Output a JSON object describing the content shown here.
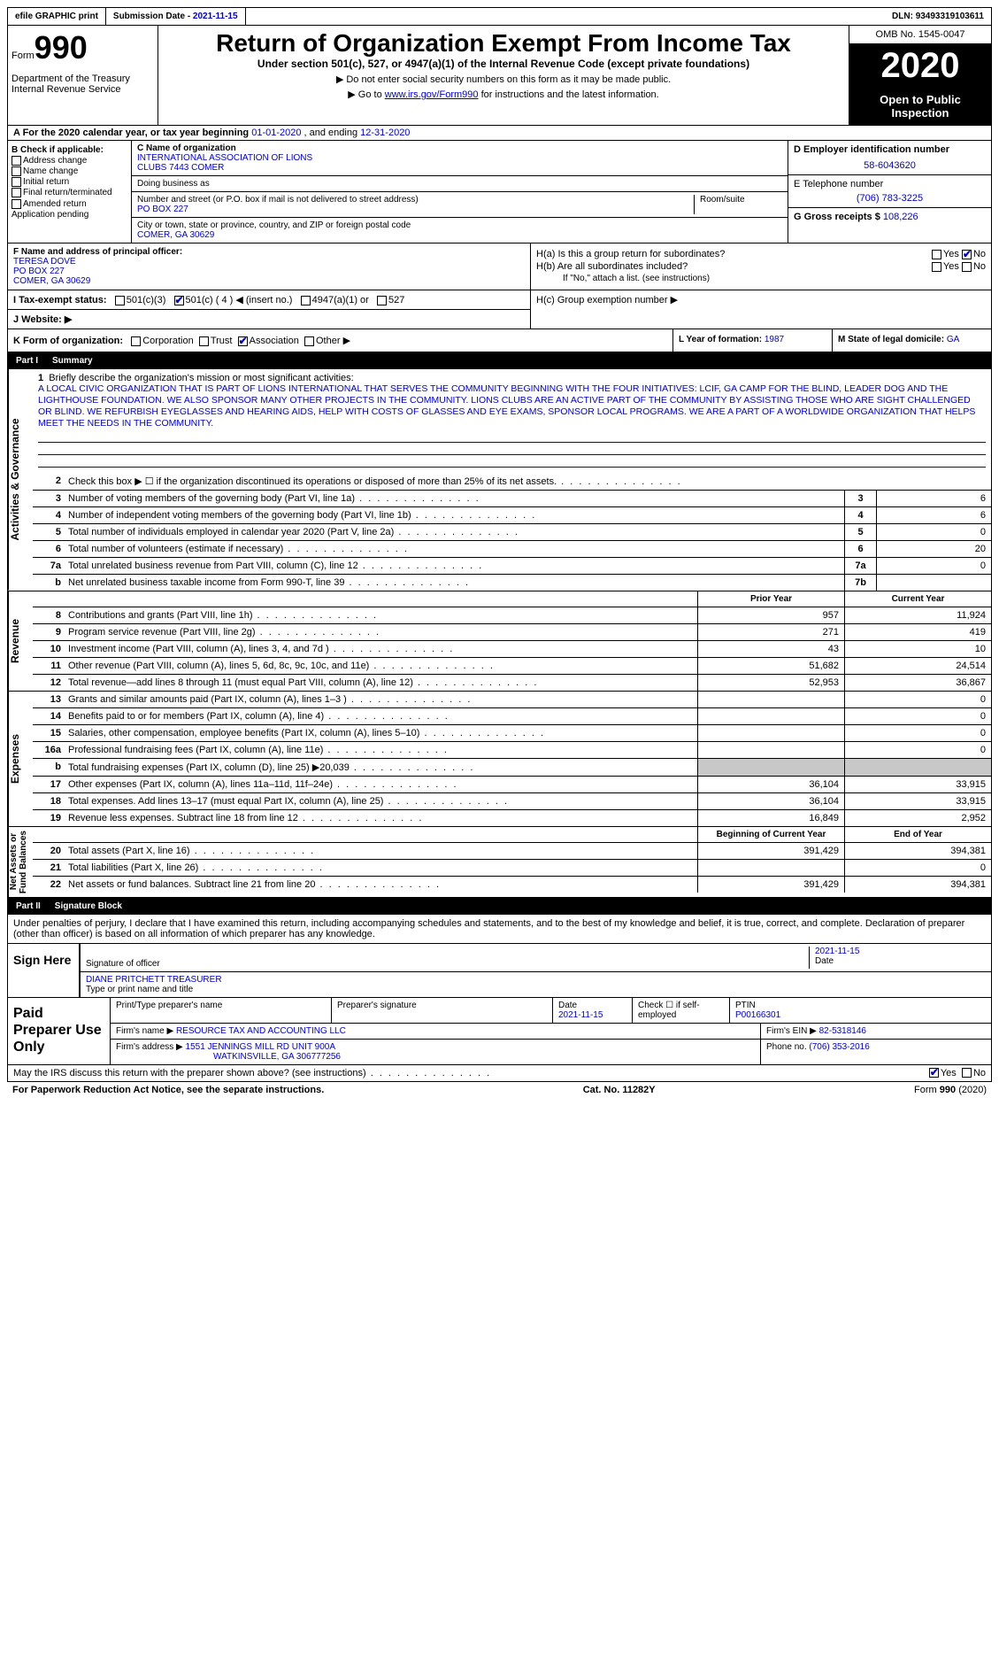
{
  "topbar": {
    "efile": "efile GRAPHIC print",
    "submission_label": "Submission Date - ",
    "submission_date": "2021-11-15",
    "dln_label": "DLN: ",
    "dln": "93493319103611"
  },
  "header": {
    "form_word": "Form",
    "form_num": "990",
    "dept": "Department of the Treasury\nInternal Revenue Service",
    "title": "Return of Organization Exempt From Income Tax",
    "subtitle": "Under section 501(c), 527, or 4947(a)(1) of the Internal Revenue Code (except private foundations)",
    "note1": "▶ Do not enter social security numbers on this form as it may be made public.",
    "note2_pre": "▶ Go to ",
    "note2_link": "www.irs.gov/Form990",
    "note2_post": " for instructions and the latest information.",
    "omb": "OMB No. 1545-0047",
    "year": "2020",
    "open": "Open to Public Inspection"
  },
  "row_a": {
    "label": "A For the 2020 calendar year, or tax year beginning ",
    "begin": "01-01-2020",
    "mid": " , and ending ",
    "end": "12-31-2020"
  },
  "box_b": {
    "label": "B Check if applicable:",
    "opts": [
      "Address change",
      "Name change",
      "Initial return",
      "Final return/terminated",
      "Amended return",
      "Application pending"
    ]
  },
  "box_c": {
    "name_label": "C Name of organization",
    "name1": "INTERNATIONAL ASSOCIATION OF LIONS",
    "name2": "CLUBS 7443 COMER",
    "dba_label": "Doing business as",
    "addr_label": "Number and street (or P.O. box if mail is not delivered to street address)",
    "room_label": "Room/suite",
    "addr": "PO BOX 227",
    "city_label": "City or town, state or province, country, and ZIP or foreign postal code",
    "city": "COMER, GA  30629"
  },
  "box_d": {
    "label": "D Employer identification number",
    "ein": "58-6043620"
  },
  "box_e": {
    "label": "E Telephone number",
    "phone": "(706) 783-3225"
  },
  "box_g": {
    "label": "G Gross receipts $ ",
    "amount": "108,226"
  },
  "box_f": {
    "label": "F Name and address of principal officer:",
    "name": "TERESA DOVE",
    "addr1": "PO BOX 227",
    "addr2": "COMER, GA  30629"
  },
  "box_h": {
    "ha_label": "H(a)  Is this a group return for subordinates?",
    "hb_label": "H(b)  Are all subordinates included?",
    "hb_note": "If \"No,\" attach a list. (see instructions)",
    "hc_label": "H(c)  Group exemption number ▶",
    "yes": "Yes",
    "no": "No"
  },
  "box_i": {
    "label": "I  Tax-exempt status:",
    "o1": "501(c)(3)",
    "o2": "501(c) ( 4 ) ◀ (insert no.)",
    "o3": "4947(a)(1) or",
    "o4": "527"
  },
  "box_j": {
    "label": "J  Website: ▶"
  },
  "box_k": {
    "label": "K Form of organization:",
    "opts": [
      "Corporation",
      "Trust",
      "Association",
      "Other ▶"
    ]
  },
  "box_l": {
    "label": "L Year of formation: ",
    "val": "1987"
  },
  "box_m": {
    "label": "M State of legal domicile: ",
    "val": "GA"
  },
  "part1": {
    "num": "Part I",
    "title": "Summary"
  },
  "vtabs": {
    "ag": "Activities & Governance",
    "rev": "Revenue",
    "exp": "Expenses",
    "na": "Net Assets or\nFund Balances"
  },
  "mission": {
    "num": "1",
    "label": "Briefly describe the organization's mission or most significant activities:",
    "text": "A LOCAL CIVIC ORGANIZATION THAT IS PART OF LIONS INTERNATIONAL THAT SERVES THE COMMUNITY BEGINNING WITH THE FOUR INITIATIVES: LCIF, GA CAMP FOR THE BLIND, LEADER DOG AND THE LIGHTHOUSE FOUNDATION. WE ALSO SPONSOR MANY OTHER PROJECTS IN THE COMMUNITY. LIONS CLUBS ARE AN ACTIVE PART OF THE COMMUNITY BY ASSISTING THOSE WHO ARE SIGHT CHALLENGED OR BLIND. WE REFURBISH EYEGLASSES AND HEARING AIDS, HELP WITH COSTS OF GLASSES AND EYE EXAMS, SPONSOR LOCAL PROGRAMS. WE ARE A PART OF A WORLDWIDE ORGANIZATION THAT HELPS MEET THE NEEDS IN THE COMMUNITY."
  },
  "lines_ag": [
    {
      "n": "2",
      "t": "Check this box ▶ ☐ if the organization discontinued its operations or disposed of more than 25% of its net assets.",
      "box": "",
      "v": ""
    },
    {
      "n": "3",
      "t": "Number of voting members of the governing body (Part VI, line 1a)",
      "box": "3",
      "v": "6"
    },
    {
      "n": "4",
      "t": "Number of independent voting members of the governing body (Part VI, line 1b)",
      "box": "4",
      "v": "6"
    },
    {
      "n": "5",
      "t": "Total number of individuals employed in calendar year 2020 (Part V, line 2a)",
      "box": "5",
      "v": "0"
    },
    {
      "n": "6",
      "t": "Total number of volunteers (estimate if necessary)",
      "box": "6",
      "v": "20"
    },
    {
      "n": "7a",
      "t": "Total unrelated business revenue from Part VIII, column (C), line 12",
      "box": "7a",
      "v": "0"
    },
    {
      "n": "b",
      "t": "Net unrelated business taxable income from Form 990-T, line 39",
      "box": "7b",
      "v": ""
    }
  ],
  "col_hdrs": {
    "prior": "Prior Year",
    "current": "Current Year",
    "boc": "Beginning of Current Year",
    "eoy": "End of Year"
  },
  "lines_rev": [
    {
      "n": "8",
      "t": "Contributions and grants (Part VIII, line 1h)",
      "p": "957",
      "c": "11,924"
    },
    {
      "n": "9",
      "t": "Program service revenue (Part VIII, line 2g)",
      "p": "271",
      "c": "419"
    },
    {
      "n": "10",
      "t": "Investment income (Part VIII, column (A), lines 3, 4, and 7d )",
      "p": "43",
      "c": "10"
    },
    {
      "n": "11",
      "t": "Other revenue (Part VIII, column (A), lines 5, 6d, 8c, 9c, 10c, and 11e)",
      "p": "51,682",
      "c": "24,514"
    },
    {
      "n": "12",
      "t": "Total revenue—add lines 8 through 11 (must equal Part VIII, column (A), line 12)",
      "p": "52,953",
      "c": "36,867"
    }
  ],
  "lines_exp": [
    {
      "n": "13",
      "t": "Grants and similar amounts paid (Part IX, column (A), lines 1–3 )",
      "p": "",
      "c": "0"
    },
    {
      "n": "14",
      "t": "Benefits paid to or for members (Part IX, column (A), line 4)",
      "p": "",
      "c": "0"
    },
    {
      "n": "15",
      "t": "Salaries, other compensation, employee benefits (Part IX, column (A), lines 5–10)",
      "p": "",
      "c": "0"
    },
    {
      "n": "16a",
      "t": "Professional fundraising fees (Part IX, column (A), line 11e)",
      "p": "",
      "c": "0"
    },
    {
      "n": "b",
      "t": "Total fundraising expenses (Part IX, column (D), line 25) ▶20,039",
      "p": "GRAY",
      "c": "GRAY"
    },
    {
      "n": "17",
      "t": "Other expenses (Part IX, column (A), lines 11a–11d, 11f–24e)",
      "p": "36,104",
      "c": "33,915"
    },
    {
      "n": "18",
      "t": "Total expenses. Add lines 13–17 (must equal Part IX, column (A), line 25)",
      "p": "36,104",
      "c": "33,915"
    },
    {
      "n": "19",
      "t": "Revenue less expenses. Subtract line 18 from line 12",
      "p": "16,849",
      "c": "2,952"
    }
  ],
  "lines_na": [
    {
      "n": "20",
      "t": "Total assets (Part X, line 16)",
      "p": "391,429",
      "c": "394,381"
    },
    {
      "n": "21",
      "t": "Total liabilities (Part X, line 26)",
      "p": "",
      "c": "0"
    },
    {
      "n": "22",
      "t": "Net assets or fund balances. Subtract line 21 from line 20",
      "p": "391,429",
      "c": "394,381"
    }
  ],
  "part2": {
    "num": "Part II",
    "title": "Signature Block"
  },
  "sig": {
    "decl": "Under penalties of perjury, I declare that I have examined this return, including accompanying schedules and statements, and to the best of my knowledge and belief, it is true, correct, and complete. Declaration of preparer (other than officer) is based on all information of which preparer has any knowledge.",
    "sign_here": "Sign Here",
    "sig_label": "Signature of officer",
    "date_label": "Date",
    "date": "2021-11-15",
    "name": "DIANE PRITCHETT  TREASURER",
    "name_label": "Type or print name and title"
  },
  "prep": {
    "title": "Paid Preparer Use Only",
    "h_name": "Print/Type preparer's name",
    "h_sig": "Preparer's signature",
    "h_date": "Date",
    "date": "2021-11-15",
    "check_label": "Check ☐ if self-employed",
    "ptin_label": "PTIN",
    "ptin": "P00166301",
    "firm_name_label": "Firm's name    ▶",
    "firm_name": "RESOURCE TAX AND ACCOUNTING LLC",
    "firm_ein_label": "Firm's EIN ▶",
    "firm_ein": "82-5318146",
    "firm_addr_label": "Firm's address ▶",
    "firm_addr1": "1551 JENNINGS MILL RD UNIT 900A",
    "firm_addr2": "WATKINSVILLE, GA  306777256",
    "phone_label": "Phone no. ",
    "phone": "(706) 353-2016"
  },
  "footer": {
    "discuss": "May the IRS discuss this return with the preparer shown above? (see instructions)",
    "yes": "Yes",
    "no": "No",
    "pra": "For Paperwork Reduction Act Notice, see the separate instructions.",
    "cat": "Cat. No. 11282Y",
    "form": "Form 990 (2020)"
  }
}
